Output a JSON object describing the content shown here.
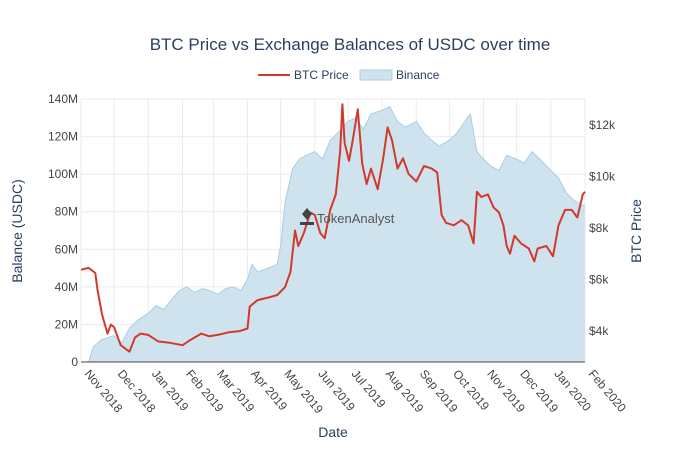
{
  "chart_data": {
    "type": "area",
    "title": "BTC Price vs Exchange Balances of USDC over time",
    "xlabel": "Date",
    "ylabel": "Balance (USDC)",
    "y2label": "BTC Price",
    "watermark": "TokenAnalyst",
    "legend_position": "top-center",
    "grid": true,
    "xlim": [
      "2018-11-01",
      "2020-02-01"
    ],
    "ylim": [
      0,
      140000000
    ],
    "y2lim": [
      2800,
      13000
    ],
    "x_ticks": [
      "2018-11-01",
      "2018-12-01",
      "2019-01-01",
      "2019-02-01",
      "2019-03-01",
      "2019-04-01",
      "2019-05-01",
      "2019-06-01",
      "2019-07-01",
      "2019-08-01",
      "2019-09-01",
      "2019-10-01",
      "2019-11-01",
      "2019-12-01",
      "2020-01-01",
      "2020-02-01"
    ],
    "x_tick_labels": [
      "Nov 2018",
      "Dec 2018",
      "Jan 2019",
      "Feb 2019",
      "Mar 2019",
      "Apr 2019",
      "May 2019",
      "Jun 2019",
      "Jul 2019",
      "Aug 2019",
      "Sep 2019",
      "Oct 2019",
      "Nov 2019",
      "Dec 2019",
      "Jan 2020",
      "Feb 2020"
    ],
    "y_ticks": [
      0,
      20000000,
      40000000,
      60000000,
      80000000,
      100000000,
      120000000,
      140000000
    ],
    "y_tick_labels": [
      "0",
      "20M",
      "40M",
      "60M",
      "80M",
      "100M",
      "120M",
      "140M"
    ],
    "y2_ticks": [
      4000,
      6000,
      8000,
      10000,
      12000
    ],
    "y2_tick_labels": [
      "$4k",
      "$6k",
      "$8k",
      "$10k",
      "$12k"
    ],
    "series": [
      {
        "name": "Binance",
        "axis": "y",
        "kind": "area",
        "color": "#cfe3ef",
        "line_color": "#a9cde3",
        "points": [
          [
            "2018-11-01",
            0
          ],
          [
            "2018-11-08",
            0
          ],
          [
            "2018-11-12",
            8000000
          ],
          [
            "2018-11-20",
            12000000
          ],
          [
            "2018-12-01",
            14000000
          ],
          [
            "2018-12-08",
            10000000
          ],
          [
            "2018-12-15",
            18000000
          ],
          [
            "2018-12-22",
            22000000
          ],
          [
            "2019-01-01",
            26000000
          ],
          [
            "2019-01-08",
            30000000
          ],
          [
            "2019-01-15",
            28000000
          ],
          [
            "2019-01-22",
            33000000
          ],
          [
            "2019-01-29",
            38000000
          ],
          [
            "2019-02-05",
            40000000
          ],
          [
            "2019-02-12",
            37000000
          ],
          [
            "2019-02-19",
            39000000
          ],
          [
            "2019-02-26",
            38000000
          ],
          [
            "2019-03-05",
            36000000
          ],
          [
            "2019-03-12",
            39000000
          ],
          [
            "2019-03-19",
            40000000
          ],
          [
            "2019-03-26",
            38000000
          ],
          [
            "2019-04-01",
            44000000
          ],
          [
            "2019-04-05",
            52000000
          ],
          [
            "2019-04-10",
            48000000
          ],
          [
            "2019-04-20",
            50000000
          ],
          [
            "2019-04-28",
            52000000
          ],
          [
            "2019-05-01",
            62000000
          ],
          [
            "2019-05-05",
            85000000
          ],
          [
            "2019-05-12",
            103000000
          ],
          [
            "2019-05-18",
            108000000
          ],
          [
            "2019-05-24",
            110000000
          ],
          [
            "2019-06-01",
            112000000
          ],
          [
            "2019-06-08",
            108000000
          ],
          [
            "2019-06-15",
            118000000
          ],
          [
            "2019-06-22",
            122000000
          ],
          [
            "2019-07-01",
            128000000
          ],
          [
            "2019-07-08",
            130000000
          ],
          [
            "2019-07-15",
            124000000
          ],
          [
            "2019-07-22",
            132000000
          ],
          [
            "2019-08-01",
            134000000
          ],
          [
            "2019-08-08",
            136000000
          ],
          [
            "2019-08-15",
            128000000
          ],
          [
            "2019-08-22",
            125000000
          ],
          [
            "2019-09-01",
            128000000
          ],
          [
            "2019-09-08",
            122000000
          ],
          [
            "2019-09-15",
            118000000
          ],
          [
            "2019-09-22",
            115000000
          ],
          [
            "2019-10-01",
            118000000
          ],
          [
            "2019-10-08",
            122000000
          ],
          [
            "2019-10-15",
            128000000
          ],
          [
            "2019-10-20",
            132000000
          ],
          [
            "2019-10-26",
            112000000
          ],
          [
            "2019-11-01",
            108000000
          ],
          [
            "2019-11-08",
            104000000
          ],
          [
            "2019-11-15",
            102000000
          ],
          [
            "2019-11-22",
            110000000
          ],
          [
            "2019-12-01",
            108000000
          ],
          [
            "2019-12-08",
            106000000
          ],
          [
            "2019-12-15",
            112000000
          ],
          [
            "2019-12-22",
            108000000
          ],
          [
            "2020-01-01",
            102000000
          ],
          [
            "2020-01-08",
            98000000
          ],
          [
            "2020-01-15",
            90000000
          ],
          [
            "2020-01-22",
            86000000
          ],
          [
            "2020-02-01",
            83000000
          ]
        ]
      },
      {
        "name": "BTC Price",
        "axis": "y2",
        "kind": "line",
        "color": "#d13a2b",
        "points": [
          [
            "2018-11-01",
            6380
          ],
          [
            "2018-11-08",
            6450
          ],
          [
            "2018-11-14",
            6250
          ],
          [
            "2018-11-16",
            5600
          ],
          [
            "2018-11-20",
            4650
          ],
          [
            "2018-11-25",
            3900
          ],
          [
            "2018-11-28",
            4250
          ],
          [
            "2018-12-01",
            4150
          ],
          [
            "2018-12-07",
            3450
          ],
          [
            "2018-12-15",
            3200
          ],
          [
            "2018-12-20",
            3750
          ],
          [
            "2018-12-25",
            3900
          ],
          [
            "2019-01-01",
            3850
          ],
          [
            "2019-01-10",
            3600
          ],
          [
            "2019-01-20",
            3550
          ],
          [
            "2019-02-01",
            3450
          ],
          [
            "2019-02-08",
            3650
          ],
          [
            "2019-02-18",
            3900
          ],
          [
            "2019-02-25",
            3800
          ],
          [
            "2019-03-05",
            3850
          ],
          [
            "2019-03-15",
            3950
          ],
          [
            "2019-03-25",
            4000
          ],
          [
            "2019-04-01",
            4100
          ],
          [
            "2019-04-03",
            4950
          ],
          [
            "2019-04-10",
            5200
          ],
          [
            "2019-04-20",
            5300
          ],
          [
            "2019-04-28",
            5400
          ],
          [
            "2019-05-05",
            5700
          ],
          [
            "2019-05-10",
            6300
          ],
          [
            "2019-05-14",
            7900
          ],
          [
            "2019-05-17",
            7300
          ],
          [
            "2019-05-22",
            7800
          ],
          [
            "2019-05-28",
            8600
          ],
          [
            "2019-06-01",
            8500
          ],
          [
            "2019-06-06",
            7800
          ],
          [
            "2019-06-10",
            7600
          ],
          [
            "2019-06-15",
            8700
          ],
          [
            "2019-06-20",
            9300
          ],
          [
            "2019-06-24",
            11000
          ],
          [
            "2019-06-26",
            12800
          ],
          [
            "2019-06-28",
            11300
          ],
          [
            "2019-07-02",
            10600
          ],
          [
            "2019-07-05",
            11300
          ],
          [
            "2019-07-10",
            12600
          ],
          [
            "2019-07-14",
            10500
          ],
          [
            "2019-07-18",
            9700
          ],
          [
            "2019-07-22",
            10300
          ],
          [
            "2019-07-28",
            9500
          ],
          [
            "2019-08-02",
            10700
          ],
          [
            "2019-08-06",
            11900
          ],
          [
            "2019-08-10",
            11400
          ],
          [
            "2019-08-15",
            10300
          ],
          [
            "2019-08-20",
            10700
          ],
          [
            "2019-08-25",
            10100
          ],
          [
            "2019-09-01",
            9800
          ],
          [
            "2019-09-08",
            10400
          ],
          [
            "2019-09-15",
            10300
          ],
          [
            "2019-09-20",
            10150
          ],
          [
            "2019-09-24",
            8500
          ],
          [
            "2019-09-28",
            8200
          ],
          [
            "2019-10-05",
            8100
          ],
          [
            "2019-10-12",
            8300
          ],
          [
            "2019-10-18",
            8100
          ],
          [
            "2019-10-23",
            7400
          ],
          [
            "2019-10-26",
            9400
          ],
          [
            "2019-10-30",
            9200
          ],
          [
            "2019-11-05",
            9300
          ],
          [
            "2019-11-10",
            8800
          ],
          [
            "2019-11-15",
            8600
          ],
          [
            "2019-11-19",
            8100
          ],
          [
            "2019-11-22",
            7300
          ],
          [
            "2019-11-25",
            7000
          ],
          [
            "2019-11-29",
            7700
          ],
          [
            "2019-12-05",
            7400
          ],
          [
            "2019-12-12",
            7200
          ],
          [
            "2019-12-17",
            6700
          ],
          [
            "2019-12-20",
            7200
          ],
          [
            "2019-12-28",
            7300
          ],
          [
            "2020-01-03",
            6900
          ],
          [
            "2020-01-08",
            8100
          ],
          [
            "2020-01-14",
            8700
          ],
          [
            "2020-01-20",
            8700
          ],
          [
            "2020-01-25",
            8400
          ],
          [
            "2020-01-30",
            9300
          ],
          [
            "2020-02-01",
            9400
          ]
        ]
      }
    ]
  }
}
